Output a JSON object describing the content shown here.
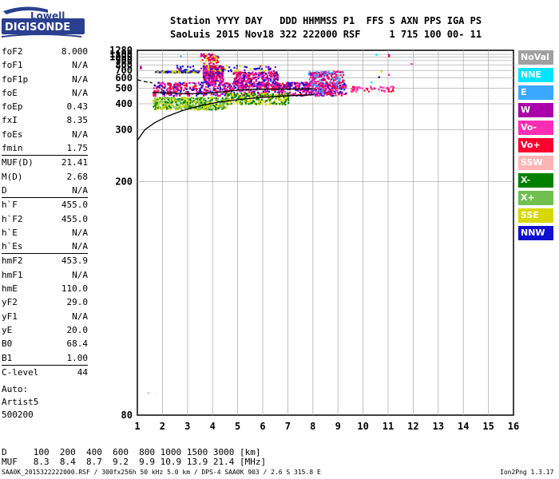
{
  "logo": {
    "top": "Lowell",
    "bottom": "DIGISONDE"
  },
  "header": {
    "line1": "Station YYYY DAY   DDD HHMMSS P1  FFS S AXN PPS IGA PS",
    "line2": "SaoLuis 2015 Nov18 322 222000 RSF     1 715 100 00- 11"
  },
  "params": [
    {
      "name": "foF2",
      "value": "8.000"
    },
    {
      "name": "foF1",
      "value": "N/A"
    },
    {
      "name": "foF1p",
      "value": "N/A"
    },
    {
      "name": "foE",
      "value": "N/A"
    },
    {
      "name": "foEp",
      "value": "0.43"
    },
    {
      "name": "fxI",
      "value": "8.35"
    },
    {
      "name": "foEs",
      "value": "N/A"
    },
    {
      "name": "fmin",
      "value": "1.75"
    },
    {
      "name": "MUF(D)",
      "value": "21.41",
      "sep": true
    },
    {
      "name": "M(D)",
      "value": "2.68"
    },
    {
      "name": "D",
      "value": "N/A"
    },
    {
      "name": "h`F",
      "value": "455.0",
      "sep": true
    },
    {
      "name": "h`F2",
      "value": "455.0"
    },
    {
      "name": "h`E",
      "value": "N/A"
    },
    {
      "name": "h`Es",
      "value": "N/A"
    },
    {
      "name": "hmF2",
      "value": "453.9",
      "sep": true
    },
    {
      "name": "hmF1",
      "value": "N/A"
    },
    {
      "name": "hmE",
      "value": "110.0"
    },
    {
      "name": "yF2",
      "value": "29.0"
    },
    {
      "name": "yF1",
      "value": "N/A"
    },
    {
      "name": "yE",
      "value": "20.0"
    },
    {
      "name": "B0",
      "value": "68.4"
    },
    {
      "name": "B1",
      "value": "1.00"
    },
    {
      "name": "C-level",
      "value": "44",
      "sep": true
    }
  ],
  "auto": {
    "line1": "Auto:",
    "line2": "Artist5",
    "line3": "500200"
  },
  "legend": [
    {
      "label": "NoVal",
      "color": "#a0a0a0"
    },
    {
      "label": "NNE",
      "color": "#00e5ff"
    },
    {
      "label": "E",
      "color": "#3aa8ff"
    },
    {
      "label": "W",
      "color": "#a800a8"
    },
    {
      "label": "Vo-",
      "color": "#ff2db4"
    },
    {
      "label": "Vo+",
      "color": "#ff0030"
    },
    {
      "label": "SSW",
      "color": "#ffb4b4"
    },
    {
      "label": "X-",
      "color": "#008000"
    },
    {
      "label": "X+",
      "color": "#70c050"
    },
    {
      "label": "SSE",
      "color": "#d8d800"
    },
    {
      "label": "NNW",
      "color": "#1010d0"
    }
  ],
  "footer": {
    "d_line": "D     100  200  400  600  800 1000 1500 3000 [km]",
    "muf_line": "MUF   8.3  8.4  8.7  9.2  9.9 10.9 13.9 21.4 [MHz]",
    "file_line": "SAA0K_2015322222000.RSF / 300fx256h 50 kHz 5.0 km / DPS-4 SAA0K 903 / 2.6 S 315.8 E",
    "version": "Ion2Png 1.3.17"
  },
  "chart_data": {
    "type": "scatter",
    "title": "",
    "xlabel": "",
    "ylabel": "",
    "xlim": [
      1,
      16
    ],
    "ylim": [
      80,
      1280
    ],
    "y_axis_scale": "reciprocal",
    "x_ticks": [
      1,
      2,
      3,
      4,
      5,
      6,
      7,
      8,
      9,
      10,
      11,
      12,
      13,
      14,
      15,
      16
    ],
    "x_tick_labels": [
      "1",
      "2",
      "3",
      "4",
      "5",
      "6",
      "7",
      "8",
      "9",
      "10",
      "11",
      "12",
      "13",
      "14",
      "15",
      "16"
    ],
    "y_ticks": [
      80,
      200,
      300,
      400,
      500,
      600,
      700,
      800,
      900,
      1000,
      1100,
      1280
    ],
    "y_tick_labels": [
      "80",
      "200",
      "300",
      "400",
      "500",
      "600",
      "700",
      "800",
      "900",
      "1000",
      "1100",
      "1280"
    ],
    "grid": true,
    "legend_position": "right",
    "profile_curve": {
      "x": [
        1.0,
        1.3,
        1.7,
        2.2,
        2.8,
        3.5,
        4.2,
        5.0,
        6.0,
        7.0,
        8.0
      ],
      "y": [
        272,
        300,
        322,
        345,
        368,
        390,
        408,
        422,
        437,
        446,
        452
      ]
    },
    "trace_curve": {
      "x": [
        1.6,
        2.0,
        2.5,
        3.0,
        3.5,
        4.0,
        4.5,
        5.0,
        5.5,
        6.0,
        6.5,
        7.0,
        7.5,
        8.0
      ],
      "y": [
        468,
        466,
        462,
        460,
        461,
        466,
        475,
        485,
        490,
        492,
        493,
        493,
        494,
        495
      ]
    },
    "dashed_curve": {
      "x": [
        1.0,
        1.3,
        1.6
      ],
      "y": [
        578,
        560,
        548
      ]
    },
    "clusters": [
      {
        "x_range": [
          1.6,
          9.3
        ],
        "y_range": [
          450,
          560
        ],
        "colors": [
          "#ff2db4",
          "#ff0030",
          "#a800a8",
          "#1010d0"
        ],
        "count": 900
      },
      {
        "x_range": [
          1.6,
          4.5
        ],
        "y_range": [
          375,
          440
        ],
        "colors": [
          "#d8d800",
          "#008000",
          "#70c050"
        ],
        "count": 450
      },
      {
        "x_range": [
          4.5,
          7.0
        ],
        "y_range": [
          400,
          470
        ],
        "colors": [
          "#d8d800",
          "#008000"
        ],
        "count": 260
      },
      {
        "x_range": [
          3.6,
          4.4
        ],
        "y_range": [
          560,
          800
        ],
        "colors": [
          "#ff2db4",
          "#a800a8",
          "#1010d0",
          "#ff0030"
        ],
        "count": 350
      },
      {
        "x_range": [
          4.8,
          6.6
        ],
        "y_range": [
          520,
          690
        ],
        "colors": [
          "#ff2db4",
          "#a800a8",
          "#ff0030",
          "#1010d0"
        ],
        "count": 320
      },
      {
        "x_range": [
          7.8,
          9.2
        ],
        "y_range": [
          460,
          700
        ],
        "colors": [
          "#ff2db4",
          "#ff0030",
          "#3aa8ff",
          "#a800a8"
        ],
        "count": 260
      },
      {
        "x_range": [
          1.7,
          3.4
        ],
        "y_range": [
          680,
          700
        ],
        "colors": [
          "#d8d800",
          "#1010d0"
        ],
        "count": 120
      },
      {
        "x_range": [
          3.5,
          4.2
        ],
        "y_range": [
          820,
          1150
        ],
        "colors": [
          "#a800a8",
          "#ff0030",
          "#d8d800"
        ],
        "count": 60
      },
      {
        "x_range": [
          9.5,
          11.2
        ],
        "y_range": [
          480,
          520
        ],
        "colors": [
          "#ff0030",
          "#ff2db4"
        ],
        "count": 50
      },
      {
        "x_range": [
          2.5,
          6.5
        ],
        "y_range": [
          700,
          800
        ],
        "colors": [
          "#1010d0",
          "#a800a8",
          "#d8d800"
        ],
        "count": 80
      }
    ],
    "sparse_points": [
      {
        "x": 10.5,
        "y": 1120,
        "color": "#00e5ff"
      },
      {
        "x": 11.0,
        "y": 1110,
        "color": "#a800a8"
      },
      {
        "x": 11.0,
        "y": 1060,
        "color": "#ff0030"
      },
      {
        "x": 11.9,
        "y": 840,
        "color": "#ff2db4"
      },
      {
        "x": 11.0,
        "y": 650,
        "color": "#ff2db4"
      },
      {
        "x": 10.6,
        "y": 620,
        "color": "#1010d0"
      },
      {
        "x": 2.7,
        "y": 1060,
        "color": "#3aa8ff"
      },
      {
        "x": 1.1,
        "y": 780,
        "color": "#a800a8"
      },
      {
        "x": 1.1,
        "y": 750,
        "color": "#a800a8"
      },
      {
        "x": 1.4,
        "y": 85,
        "color": "#ffb4b4"
      },
      {
        "x": 10.3,
        "y": 560,
        "color": "#00e5ff"
      },
      {
        "x": 10.7,
        "y": 700,
        "color": "#d8d800"
      }
    ]
  }
}
